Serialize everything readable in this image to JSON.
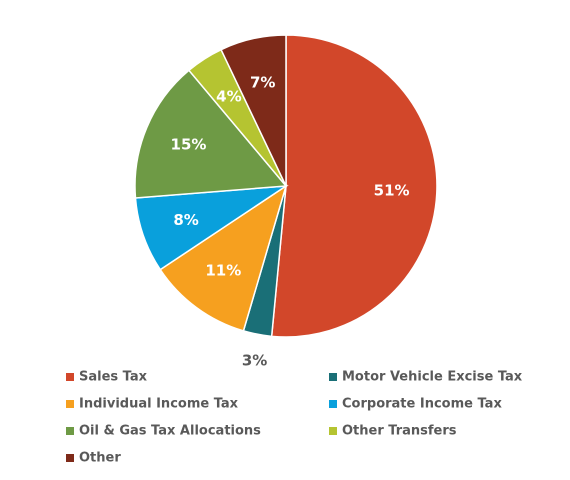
{
  "chart_data": {
    "type": "pie",
    "title": "",
    "start_angle_deg": 0,
    "direction": "clockwise",
    "legend_position": "bottom",
    "slices": [
      {
        "label": "Sales Tax",
        "value": 51,
        "display": "51%",
        "color": "#D2472A",
        "label_color": "#ffffff"
      },
      {
        "label": "Motor Vehicle Excise Tax",
        "value": 3,
        "display": "3%",
        "color": "#1A6F77",
        "label_color": "#595959"
      },
      {
        "label": "Individual Income Tax",
        "value": 11,
        "display": "11%",
        "color": "#F6A01F",
        "label_color": "#ffffff"
      },
      {
        "label": "Corporate Income Tax",
        "value": 8,
        "display": "8%",
        "color": "#09A0DC",
        "label_color": "#ffffff"
      },
      {
        "label": "Oil & Gas Tax Allocations",
        "value": 15,
        "display": "15%",
        "color": "#6E9A45",
        "label_color": "#ffffff"
      },
      {
        "label": "Other Transfers",
        "value": 4,
        "display": "4%",
        "color": "#B5C431",
        "label_color": "#ffffff"
      },
      {
        "label": "Other",
        "value": 7,
        "display": "7%",
        "color": "#7E2A19",
        "label_color": "#ffffff"
      }
    ]
  }
}
